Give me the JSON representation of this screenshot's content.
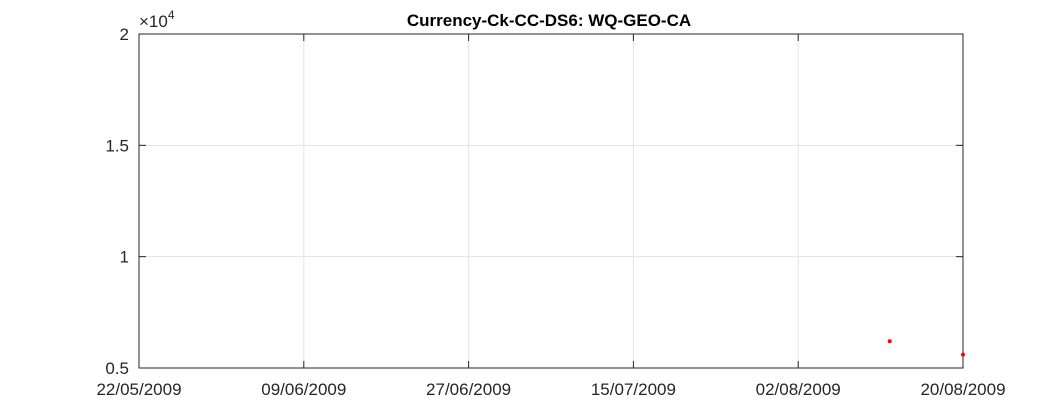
{
  "chart_data": {
    "type": "scatter",
    "title": "Currency-Ck-CC-DS6: WQ-GEO-CA",
    "xlabel": "",
    "ylabel": "",
    "x_axis_type": "date",
    "xlim": [
      "22/05/2009",
      "20/08/2009"
    ],
    "ylim": [
      5000,
      20000
    ],
    "y_exponent_label": "×10",
    "y_exponent_power": "4",
    "x_ticks": [
      "22/05/2009",
      "09/06/2009",
      "27/06/2009",
      "15/07/2009",
      "02/08/2009",
      "20/08/2009"
    ],
    "y_ticks": [
      {
        "value": 5000,
        "label": "0.5"
      },
      {
        "value": 10000,
        "label": "1"
      },
      {
        "value": 15000,
        "label": "1.5"
      },
      {
        "value": 20000,
        "label": "2"
      }
    ],
    "grid": true,
    "marker_color": "#ff0000",
    "points": [
      {
        "x": "12/08/2009",
        "y": 6200
      },
      {
        "x": "20/08/2009",
        "y": 5600
      }
    ]
  }
}
